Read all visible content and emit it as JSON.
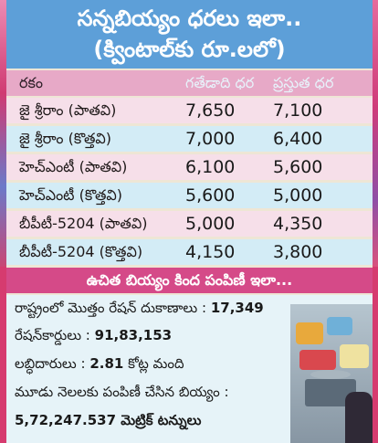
{
  "title": {
    "line1": "సన్నబియ్యం ధరలు ఇలా..",
    "line2": "(క్వింటాల్‌కు రూ.లలో)"
  },
  "table": {
    "headers": [
      "రకం",
      "గతేడాది ధర",
      "ప్రస్తుత ధర"
    ],
    "rows": [
      [
        "జై శ్రీరాం (పాతవి)",
        "7,650",
        "7,100"
      ],
      [
        "జై శ్రీరాం (కొత్తవి)",
        "7,000",
        "6,400"
      ],
      [
        "హెచ్‌ఎంటీ (పాతవి)",
        "6,100",
        "5,600"
      ],
      [
        "హెచ్‌ఎంటీ (కొత్తవి)",
        "5,600",
        "5,000"
      ],
      [
        "బీపీటీ-5204 (పాతవి)",
        "5,000",
        "4,350"
      ],
      [
        "బీపీటీ-5204 (కొత్తవి)",
        "4,150",
        "3,800"
      ]
    ]
  },
  "stats": {
    "heading": "ఉచిత బియ్యం కింద పంపిణీ ఇలా...",
    "shops_label": "రాష్ట్రంలో మొత్తం రేషన్ దుకాణాలు : ",
    "shops_value": "17,349",
    "cards_label": "రేషన్‌కార్డులు : ",
    "cards_value": "91,83,153",
    "beneficiaries_label": "లబ్ధిదారులు : ",
    "beneficiaries_value": "2.81",
    "beneficiaries_unit": " కోట్ల మంది",
    "distributed_label": "మూడు నెలలకు పంపిణీ చేసిన బియ్యం :",
    "distributed_value": "5,72,247.537 మెట్రిక్ టన్నులు"
  }
}
